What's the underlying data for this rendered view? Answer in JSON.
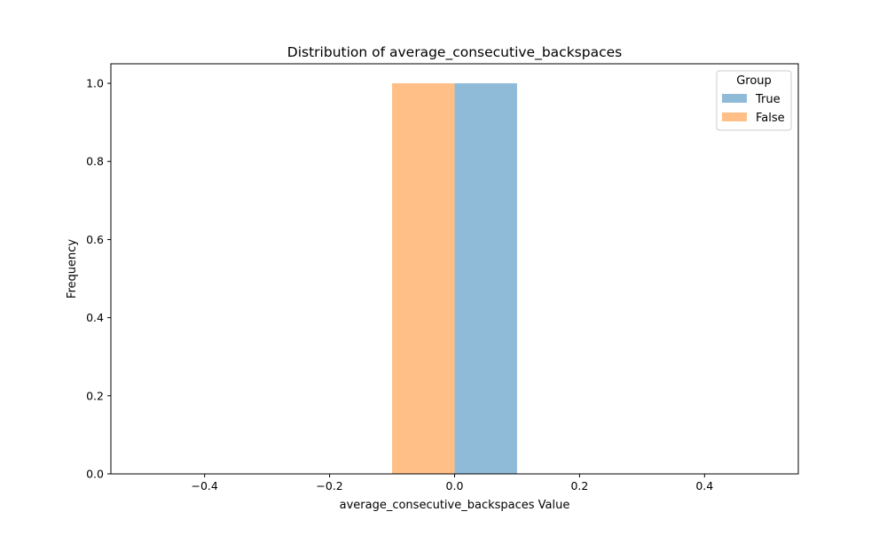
{
  "chart_data": {
    "type": "bar",
    "title": "Distribution of average_consecutive_backspaces",
    "xlabel": "average_consecutive_backspaces Value",
    "ylabel": "Frequency",
    "xlim": [
      -0.55,
      0.55
    ],
    "ylim": [
      0,
      1.05
    ],
    "x_ticks": [
      -0.4,
      -0.2,
      0.0,
      0.2,
      0.4
    ],
    "x_tick_labels": [
      "−0.4",
      "−0.2",
      "0.0",
      "0.2",
      "0.4"
    ],
    "y_ticks": [
      0.0,
      0.2,
      0.4,
      0.6,
      0.8,
      1.0
    ],
    "y_tick_labels": [
      "0.0",
      "0.2",
      "0.4",
      "0.6",
      "0.8",
      "1.0"
    ],
    "grid": false,
    "legend": {
      "title": "Group",
      "placement": "top-right"
    },
    "series": [
      {
        "name": "True",
        "color": "#8fbbd9",
        "bins": [
          {
            "x0": 0.0,
            "x1": 0.1,
            "value": 1
          }
        ]
      },
      {
        "name": "False",
        "color": "#ffbf86",
        "bins": [
          {
            "x0": -0.1,
            "x1": 0.0,
            "value": 1
          }
        ]
      }
    ]
  }
}
